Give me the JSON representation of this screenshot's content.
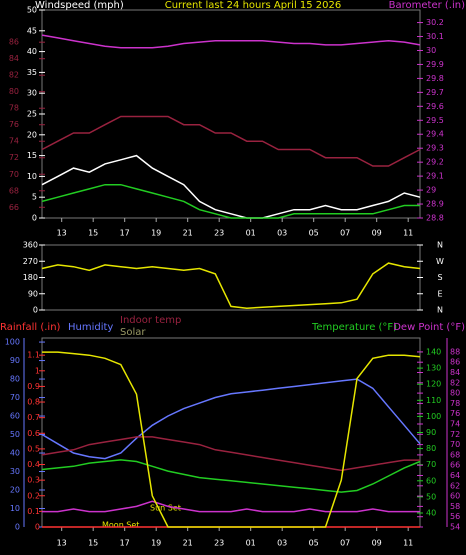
{
  "chart_data": [
    {
      "type": "line",
      "title": "Current last 24 hours April 15 2026",
      "ylabel": "Windspeed (mph)",
      "y2label": "Barometer (.in)",
      "x": [
        0,
        1,
        2,
        3,
        4,
        5,
        6,
        7,
        8,
        9,
        10,
        11,
        12,
        13,
        14,
        15,
        16,
        17,
        18,
        19,
        20,
        21,
        22,
        23,
        24
      ],
      "xlim": [
        0,
        24
      ],
      "xticks": [
        {
          "value": 1.25,
          "label": "13"
        },
        {
          "value": 3.25,
          "label": "15"
        },
        {
          "value": 5.25,
          "label": "17"
        },
        {
          "value": 7.25,
          "label": "19"
        },
        {
          "value": 9.25,
          "label": "21"
        },
        {
          "value": 11.25,
          "label": "23"
        },
        {
          "value": 13.25,
          "label": "01"
        },
        {
          "value": 15.25,
          "label": "03"
        },
        {
          "value": 17.25,
          "label": "05"
        },
        {
          "value": 19.25,
          "label": "07"
        },
        {
          "value": 21.25,
          "label": "09"
        },
        {
          "value": 23.25,
          "label": "11"
        }
      ],
      "ylim": [
        0,
        50
      ],
      "yticks": [
        0,
        5,
        10,
        15,
        20,
        25,
        30,
        35,
        40,
        45,
        50
      ],
      "y2lim": [
        28.8,
        30.29
      ],
      "y2ticks": [
        28.8,
        28.9,
        29,
        29.1,
        29.2,
        29.3,
        29.4,
        29.5,
        29.6,
        29.7,
        29.8,
        29.9,
        30,
        30.1,
        30.2
      ],
      "y3lim": [
        64.7,
        89.9
      ],
      "y3ticks": [
        66,
        68,
        70,
        72,
        74,
        76,
        78,
        80,
        82,
        84,
        86
      ],
      "axis_colors": {
        "y": "#ffffff",
        "y2": "#cc33cc",
        "y3": "#99223f"
      },
      "series": [
        {
          "color": "#ffffff",
          "values": [
            8,
            10,
            12,
            11,
            13,
            14,
            15,
            12,
            10,
            8,
            4,
            2,
            1,
            0,
            0,
            1,
            2,
            2,
            3,
            2,
            2,
            3,
            4,
            6,
            5
          ]
        },
        {
          "color": "#22cc22",
          "values": [
            4,
            5,
            6,
            7,
            8,
            8,
            7,
            6,
            5,
            4,
            2,
            1,
            0,
            0,
            0,
            0,
            1,
            1,
            1,
            1,
            1,
            1,
            2,
            3,
            3
          ]
        },
        {
          "color": "#99223f",
          "axis": "y3",
          "values": [
            73,
            74,
            75,
            75,
            76,
            77,
            77,
            77,
            77,
            76,
            76,
            75,
            75,
            74,
            74,
            73,
            73,
            73,
            72,
            72,
            72,
            71,
            71,
            72,
            73
          ]
        },
        {
          "color": "#cc33cc",
          "axis": "y2",
          "values": [
            30.11,
            30.09,
            30.07,
            30.05,
            30.03,
            30.02,
            30.02,
            30.02,
            30.03,
            30.05,
            30.06,
            30.07,
            30.07,
            30.07,
            30.07,
            30.06,
            30.05,
            30.05,
            30.04,
            30.04,
            30.05,
            30.06,
            30.07,
            30.06,
            30.04
          ]
        }
      ]
    },
    {
      "type": "line",
      "x": [
        0,
        1,
        2,
        3,
        4,
        5,
        6,
        7,
        8,
        9,
        10,
        11,
        12,
        13,
        14,
        15,
        16,
        17,
        18,
        19,
        20,
        21,
        22,
        23,
        24
      ],
      "xlim": [
        0,
        24
      ],
      "ylim": [
        0,
        360
      ],
      "yticks": [
        0,
        90,
        180,
        270,
        360
      ],
      "y2lim": [
        0,
        360
      ],
      "y2ticks": [
        {
          "value": 360,
          "label": "N"
        },
        {
          "value": 270,
          "label": "W"
        },
        {
          "value": 180,
          "label": "S"
        },
        {
          "value": 90,
          "label": "E"
        },
        {
          "value": 0,
          "label": "N"
        }
      ],
      "axis_colors": {
        "y": "#ffffff",
        "y2": "#ffffff"
      },
      "series": [
        {
          "color": "#e6e600",
          "values": [
            230,
            250,
            240,
            220,
            250,
            240,
            230,
            240,
            230,
            220,
            230,
            200,
            20,
            10,
            15,
            20,
            25,
            30,
            35,
            40,
            60,
            200,
            260,
            240,
            230
          ]
        }
      ]
    },
    {
      "type": "line",
      "ylabel": "Rainfall (.in)",
      "y3label": "Humidity",
      "y2label": "Temperature (°F)",
      "y4label": "Dew Point (°F)",
      "x": [
        0,
        1,
        2,
        3,
        4,
        5,
        6,
        7,
        8,
        9,
        10,
        11,
        12,
        13,
        14,
        15,
        16,
        17,
        18,
        19,
        20,
        21,
        22,
        23,
        24
      ],
      "xlim": [
        0,
        24
      ],
      "xticks": [
        {
          "value": 1.25,
          "label": "13"
        },
        {
          "value": 3.25,
          "label": "15"
        },
        {
          "value": 5.25,
          "label": "17"
        },
        {
          "value": 7.25,
          "label": "19"
        },
        {
          "value": 9.25,
          "label": "21"
        },
        {
          "value": 11.25,
          "label": "23"
        },
        {
          "value": 13.25,
          "label": "01"
        },
        {
          "value": 15.25,
          "label": "03"
        },
        {
          "value": 17.25,
          "label": "05"
        },
        {
          "value": 19.25,
          "label": "07"
        },
        {
          "value": 21.25,
          "label": "09"
        },
        {
          "value": 23.25,
          "label": "11"
        }
      ],
      "ylim": [
        0,
        1.21
      ],
      "yticks": [
        0,
        0.1,
        0.2,
        0.3,
        0.4,
        0.5,
        0.6,
        0.7,
        0.8,
        0.9,
        1,
        1.1
      ],
      "y3lim": [
        0,
        102.2
      ],
      "y3ticks": [
        0,
        10,
        20,
        30,
        40,
        50,
        60,
        70,
        80,
        90,
        100
      ],
      "y2lim": [
        31.3,
        148.7
      ],
      "y2ticks": [
        40,
        50,
        60,
        70,
        80,
        90,
        100,
        110,
        120,
        130,
        140
      ],
      "y4lim": [
        54,
        90.7
      ],
      "y4ticks": [
        54,
        56,
        58,
        60,
        62,
        64,
        66,
        68,
        70,
        72,
        74,
        76,
        78,
        80,
        82,
        84,
        86,
        88
      ],
      "axis_colors": {
        "y": "#ff3333",
        "y3": "#6677ff",
        "y2": "#22cc22",
        "y4": "#cc33cc"
      },
      "annotations": [
        "Sun Set",
        "Moon Set"
      ],
      "series": [
        {
          "color": "#ff3333",
          "values": [
            0,
            0,
            0,
            0,
            0,
            0,
            0,
            0,
            0,
            0,
            0,
            0,
            0,
            0,
            0,
            0,
            0,
            0,
            0,
            0,
            0,
            0,
            0,
            0,
            0
          ]
        },
        {
          "color": "#6677ff",
          "axis": "y3",
          "values": [
            50,
            45,
            40,
            38,
            37,
            40,
            48,
            55,
            60,
            64,
            67,
            70,
            72,
            73,
            74,
            75,
            76,
            77,
            78,
            79,
            80,
            75,
            65,
            55,
            45
          ]
        },
        {
          "color": "#22cc22",
          "axis": "y2",
          "values": [
            67,
            68,
            69,
            71,
            72,
            73,
            72,
            69,
            66,
            64,
            62,
            61,
            60,
            59,
            58,
            57,
            56,
            55,
            54,
            53,
            54,
            58,
            63,
            68,
            72
          ]
        },
        {
          "color": "#cc33cc",
          "axis": "y4",
          "values": [
            57,
            57,
            57.5,
            57,
            57,
            57.5,
            58,
            59,
            58,
            57.5,
            57,
            57,
            57,
            57.5,
            57,
            57,
            57,
            57.5,
            57,
            57,
            57,
            57.5,
            57,
            57,
            57
          ]
        },
        {
          "name": "Indoor temp",
          "color": "#99223f",
          "axis": "y4",
          "values": [
            68,
            68.5,
            69,
            70,
            70.5,
            71,
            71.5,
            71.5,
            71,
            70.5,
            70,
            69,
            68.5,
            68,
            67.5,
            67,
            66.5,
            66,
            65.5,
            65,
            65.5,
            66,
            66.5,
            67,
            67
          ]
        },
        {
          "name": "Solar",
          "color": "#e6e600",
          "values": [
            1.12,
            1.12,
            1.11,
            1.1,
            1.08,
            1.04,
            0.85,
            0.2,
            0,
            0,
            0,
            0,
            0,
            0,
            0,
            0,
            0,
            0,
            0,
            0.3,
            0.95,
            1.08,
            1.1,
            1.1,
            1.09
          ]
        }
      ]
    }
  ]
}
